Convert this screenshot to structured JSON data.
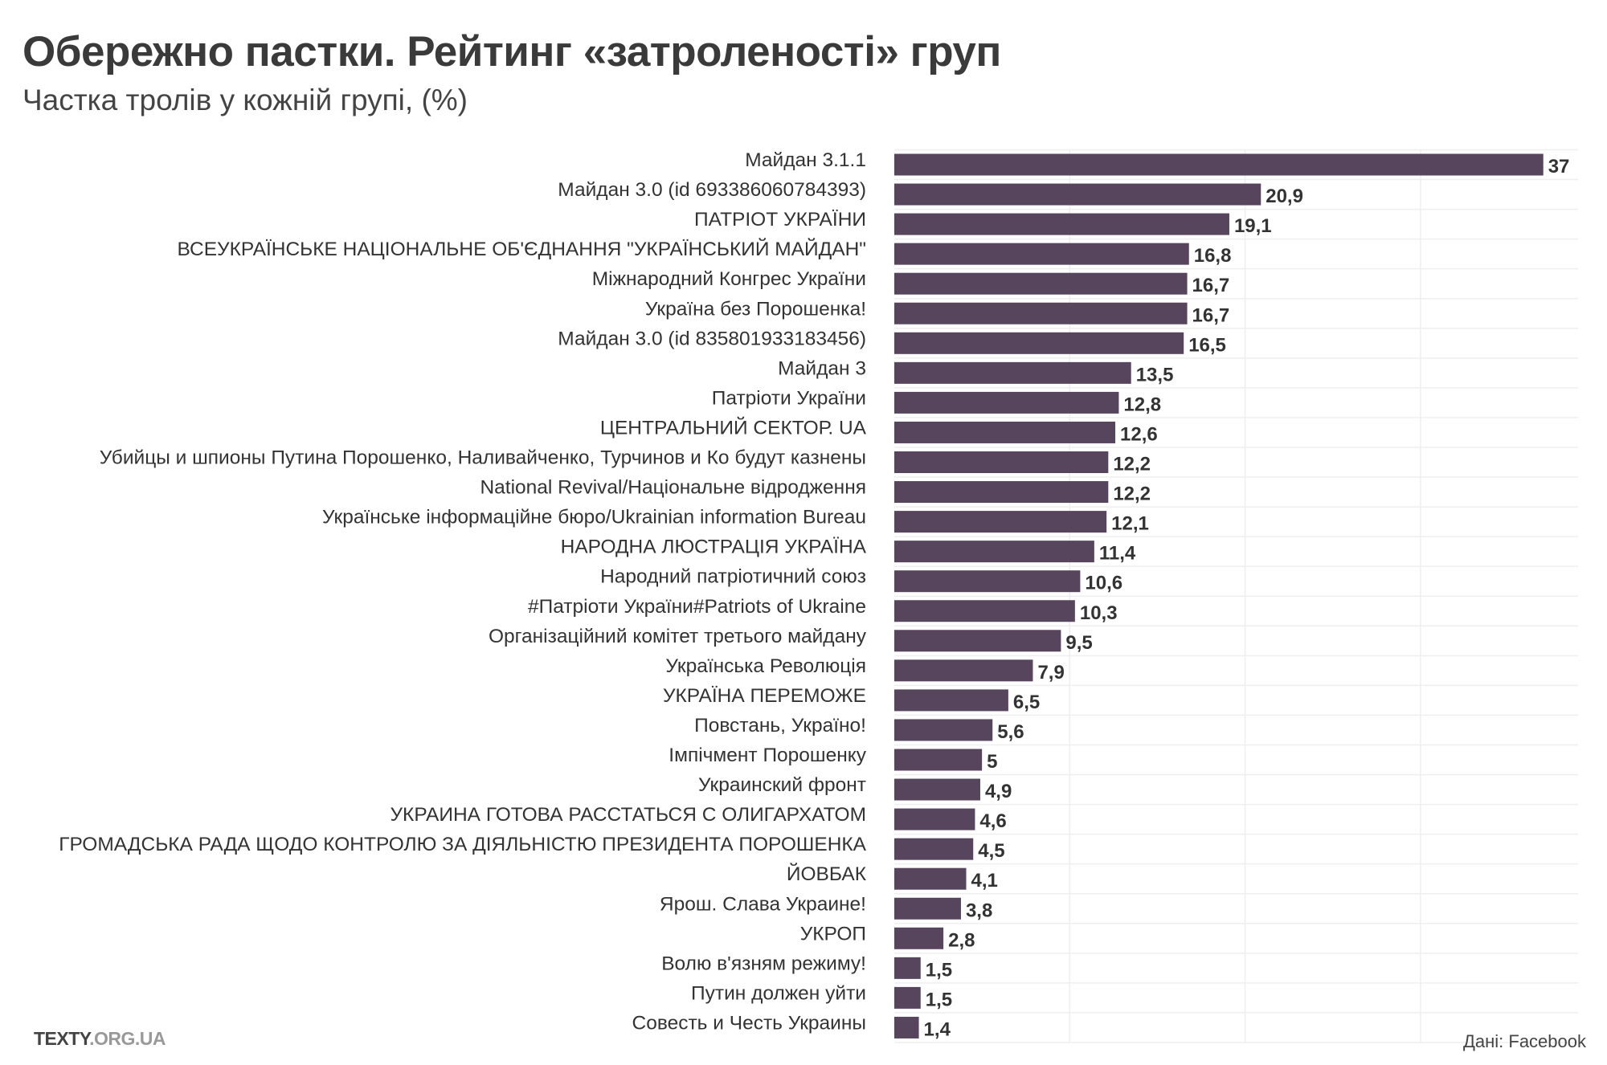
{
  "title": "Обережно пастки. Рейтинг «затроленості» груп",
  "subtitle": "Частка тролів у кожній групі, (%)",
  "footer": {
    "logo_main": "TEXTY",
    "logo_domain": ".ORG.UA",
    "source": "Дані: Facebook"
  },
  "chart_data": {
    "type": "bar",
    "orientation": "horizontal",
    "title": "Обережно пастки. Рейтинг «затроленості» груп",
    "subtitle": "Частка тролів у кожній групі, (%)",
    "bar_color": "#56455c",
    "grid": true,
    "xlim": [
      0,
      39
    ],
    "categories": [
      "Майдан 3.1.1",
      "Майдан 3.0 (id 693386060784393)",
      "ПАТРІОТ УКРАЇНИ",
      "ВСЕУКРАЇНСЬКЕ НАЦІОНАЛЬНЕ ОБ'ЄДНАННЯ \"УКРАЇНСЬКИЙ МАЙДАН\"",
      "Міжнародний Конгрес України",
      "Україна без Порошенка!",
      "Майдан 3.0 (id 835801933183456)",
      "Майдан 3",
      "Патріоти України",
      "ЦЕНТРАЛЬНИЙ СЕКТОР. UA",
      "Убийцы и шпионы Путина Порошенко, Наливайченко, Турчинов и Ко будут казнены",
      "National Revival/Національне відродження",
      "Українське інформаційне бюро/Ukrainian information Bureau",
      "НАРОДНА ЛЮСТРАЦІЯ УКРАЇНА",
      "Народний патріотичний союз",
      "#Патріоти України#Patriots of Ukraine",
      "Організаційний комітет третього майдану",
      "Українська Революція",
      "УКРАЇНА ПЕРЕМОЖЕ",
      "Повстань, Україно!",
      "Імпічмент Порошенку",
      "Украинский фронт",
      "УКРАИНА ГОТОВА РАССТАТЬСЯ С ОЛИГАРХАТОМ",
      "ГРОМАДСЬКА РАДА ЩОДО КОНТРОЛЮ ЗА ДІЯЛЬНІСТЮ ПРЕЗИДЕНТА ПОРОШЕНКА",
      "ЙОВБАК",
      "Ярош. Слава Украине!",
      "УКРОП",
      "Волю в'язням режиму!",
      "Путин должен уйти",
      "Совесть и Честь Украины"
    ],
    "values": [
      37,
      20.9,
      19.1,
      16.8,
      16.7,
      16.7,
      16.5,
      13.5,
      12.8,
      12.6,
      12.2,
      12.2,
      12.1,
      11.4,
      10.6,
      10.3,
      9.5,
      7.9,
      6.5,
      5.6,
      5,
      4.9,
      4.6,
      4.5,
      4.1,
      3.8,
      2.8,
      1.5,
      1.5,
      1.4
    ],
    "value_labels": [
      "37",
      "20,9",
      "19,1",
      "16,8",
      "16,7",
      "16,7",
      "16,5",
      "13,5",
      "12,8",
      "12,6",
      "12,2",
      "12,2",
      "12,1",
      "11,4",
      "10,6",
      "10,3",
      "9,5",
      "7,9",
      "6,5",
      "5,6",
      "5",
      "4,9",
      "4,6",
      "4,5",
      "4,1",
      "3,8",
      "2,8",
      "1,5",
      "1,5",
      "1,4"
    ]
  }
}
